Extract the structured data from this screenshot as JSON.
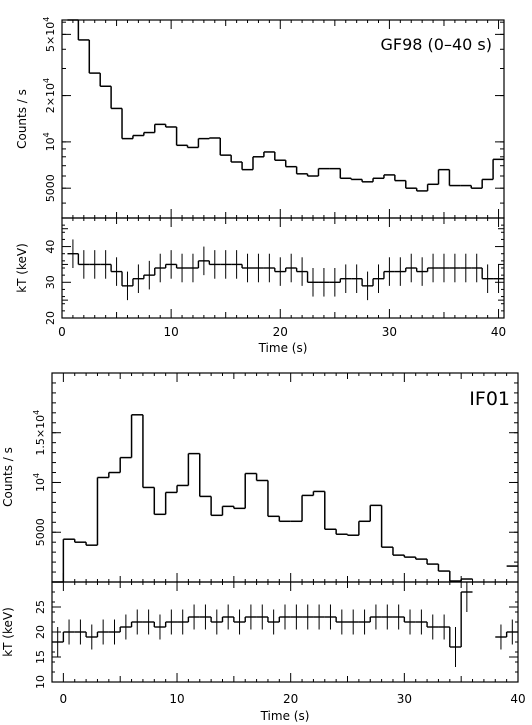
{
  "chart_data": [
    {
      "type": "line",
      "panel": "GF98 (0-40 s)",
      "x_range": [
        0,
        40.5
      ],
      "xlabel": "Time (s)",
      "x_ticks": [
        "0",
        "10",
        "20",
        "30",
        "40"
      ],
      "top": {
        "label": "GF98 (0–40 s)",
        "ylabel": "Counts / s",
        "scale": "log",
        "ylim": [
          3200,
          62000
        ],
        "ticks": [
          {
            "value": 5000,
            "base": "5000",
            "sup": ""
          },
          {
            "value": 10000,
            "base": "10",
            "sup": "4"
          },
          {
            "value": 20000,
            "base": "2×10",
            "sup": "4"
          },
          {
            "value": 50000,
            "base": "5×10",
            "sup": "4"
          }
        ],
        "x": [
          1,
          2,
          3,
          4,
          5,
          6,
          7,
          8,
          9,
          10,
          11,
          12,
          13,
          14,
          15,
          16,
          17,
          18,
          19,
          20,
          21,
          22,
          23,
          24,
          25,
          26,
          27,
          28,
          29,
          30,
          31,
          32,
          33,
          34,
          35,
          36,
          37,
          38,
          39,
          40
        ],
        "values": [
          62000,
          46000,
          28000,
          23000,
          16500,
          10500,
          11000,
          11500,
          13000,
          12500,
          9500,
          9200,
          10500,
          10600,
          8200,
          7400,
          6600,
          8000,
          8600,
          7600,
          6900,
          6200,
          6000,
          6700,
          6700,
          5800,
          5700,
          5500,
          5800,
          6100,
          5600,
          5000,
          4800,
          5300,
          6600,
          5200,
          5200,
          5000,
          5700,
          7700
        ]
      },
      "bottom": {
        "ylabel": "kT (keV)",
        "ylim": [
          20,
          48
        ],
        "ticks": [
          20,
          30,
          40
        ],
        "x": [
          1,
          2,
          3,
          4,
          5,
          6,
          7,
          8,
          9,
          10,
          11,
          12,
          13,
          14,
          15,
          16,
          17,
          18,
          19,
          20,
          21,
          22,
          23,
          24,
          25,
          26,
          27,
          28,
          29,
          30,
          31,
          32,
          33,
          34,
          35,
          36,
          37,
          38,
          39,
          40
        ],
        "values": [
          38,
          35,
          35,
          35,
          33,
          29,
          31,
          32,
          34,
          35,
          34,
          34,
          36,
          35,
          35,
          35,
          34,
          34,
          34,
          33,
          34,
          33,
          30,
          30,
          30,
          31,
          31,
          29,
          31,
          33,
          33,
          34,
          33,
          34,
          34,
          34,
          34,
          34,
          31,
          31
        ],
        "errors": [
          4,
          4,
          4,
          4,
          4,
          4,
          4,
          4,
          4,
          4,
          4,
          4,
          4,
          4,
          4,
          4,
          4,
          4,
          4,
          4,
          4,
          4,
          4,
          4,
          4,
          4,
          4,
          4,
          4,
          4,
          4,
          4,
          4,
          4,
          4,
          4,
          4,
          4,
          4,
          4
        ]
      }
    },
    {
      "type": "line",
      "panel": "IF01",
      "x_range": [
        -1,
        40
      ],
      "xlabel": "Time (s)",
      "x_ticks": [
        "0",
        "10",
        "20",
        "30",
        "40"
      ],
      "top": {
        "label": "IF01",
        "ylabel": "Counts / s",
        "scale": "linear",
        "ylim": [
          0,
          21000
        ],
        "ticks": [
          {
            "value": 5000,
            "base": "5000",
            "sup": ""
          },
          {
            "value": 10000,
            "base": "10",
            "sup": "4"
          },
          {
            "value": 15000,
            "base": "1.5×10",
            "sup": "4"
          }
        ],
        "x": [
          -0.5,
          0.5,
          1.5,
          2.5,
          3.5,
          4.5,
          5.5,
          6.5,
          7.5,
          8.5,
          9.5,
          10.5,
          11.5,
          12.5,
          13.5,
          14.5,
          15.5,
          16.5,
          17.5,
          18.5,
          19.5,
          20.5,
          21.5,
          22.5,
          23.5,
          24.5,
          25.5,
          26.5,
          27.5,
          28.5,
          29.5,
          30.5,
          31.5,
          32.5,
          33.5,
          34.5,
          35.5,
          36.5,
          37.5,
          38.5,
          39.5
        ],
        "values": [
          0,
          4300,
          4000,
          3700,
          10500,
          11000,
          12500,
          16800,
          9500,
          6800,
          9000,
          9700,
          12900,
          8600,
          6700,
          7600,
          7400,
          10900,
          10200,
          6600,
          6100,
          6100,
          8700,
          9100,
          5300,
          4800,
          4700,
          6100,
          7700,
          3500,
          2700,
          2500,
          2300,
          1800,
          1100,
          100,
          300,
          null,
          null,
          null,
          1600
        ]
      },
      "bottom": {
        "ylabel": "kT (keV)",
        "ylim": [
          10,
          30
        ],
        "ticks": [
          10,
          15,
          20,
          25
        ],
        "x": [
          -0.5,
          0.5,
          1.5,
          2.5,
          3.5,
          4.5,
          5.5,
          6.5,
          7.5,
          8.5,
          9.5,
          10.5,
          11.5,
          12.5,
          13.5,
          14.5,
          15.5,
          16.5,
          17.5,
          18.5,
          19.5,
          20.5,
          21.5,
          22.5,
          23.5,
          24.5,
          25.5,
          26.5,
          27.5,
          28.5,
          29.5,
          30.5,
          31.5,
          32.5,
          33.5,
          34.5,
          35.5,
          36.5,
          37.5,
          38.5,
          39.5
        ],
        "values": [
          18,
          20,
          20,
          19,
          20,
          20,
          21,
          22,
          22,
          21,
          22,
          22,
          23,
          23,
          22,
          23,
          22,
          23,
          23,
          22,
          23,
          23,
          23,
          23,
          23,
          22,
          22,
          22,
          23,
          23,
          23,
          22,
          22,
          21,
          21,
          17,
          28,
          null,
          null,
          19,
          20
        ],
        "errors": [
          3,
          2.5,
          2.5,
          2.5,
          2.5,
          2.5,
          2.5,
          2.5,
          2.5,
          2.5,
          2.5,
          2.5,
          2.5,
          2.5,
          2.5,
          2.5,
          2.5,
          2.5,
          2.5,
          2.5,
          2.5,
          2.5,
          2.5,
          2.5,
          2.5,
          2.5,
          2.5,
          2.5,
          2.5,
          2.5,
          2.5,
          2.5,
          2.5,
          2.5,
          2.5,
          4,
          4,
          null,
          null,
          2.5,
          2.5
        ]
      }
    }
  ]
}
